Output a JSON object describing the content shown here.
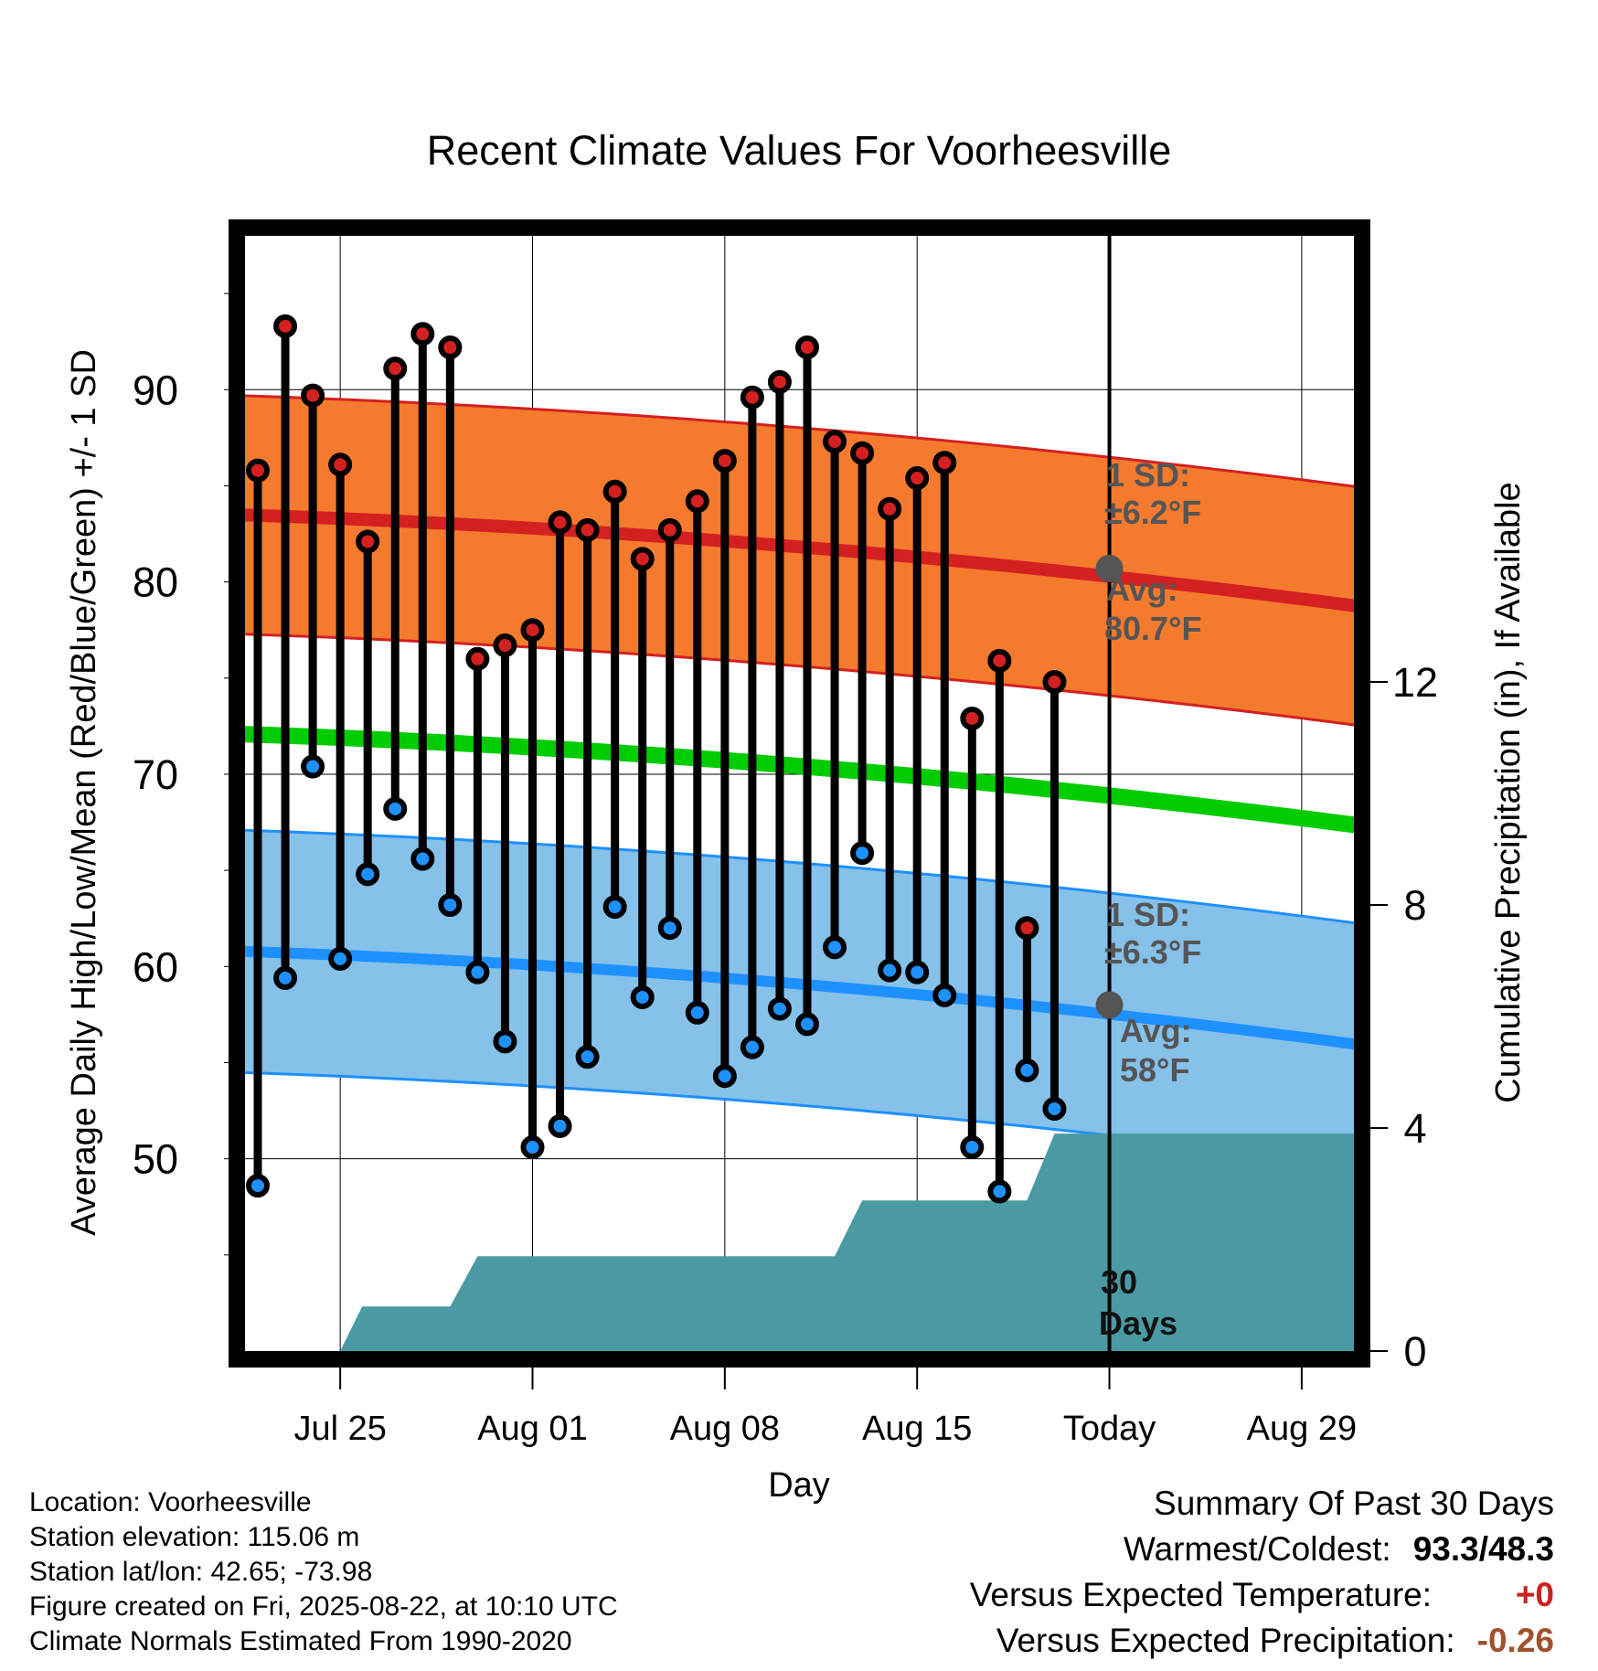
{
  "chart_data": {
    "type": "line",
    "title": "Recent Climate Values For Voorheesville",
    "xlabel": "Day",
    "ylabel": "Average Daily High/Low/Mean (Red/Blue/Green) +/- 1 SD",
    "y2label": "Cumulative Precipitation (in), If Available",
    "x_start": "Jul 22",
    "x_end": "Aug 31",
    "today_index": 31,
    "x_ticks": [
      {
        "label": "Jul 25",
        "day_index": 3
      },
      {
        "label": "Aug 01",
        "day_index": 10
      },
      {
        "label": "Aug 08",
        "day_index": 17
      },
      {
        "label": "Aug 15",
        "day_index": 24
      },
      {
        "label": "Today",
        "day_index": 31
      },
      {
        "label": "Aug 29",
        "day_index": 38
      }
    ],
    "ylim": [
      40,
      98
    ],
    "y_ticks": [
      50,
      60,
      70,
      80,
      90
    ],
    "y2lim": [
      0,
      20
    ],
    "y2_ticks": [
      0,
      4,
      8,
      12
    ],
    "grid": true,
    "series": [
      {
        "name": "High",
        "color": "#d42020",
        "values": [
          85.8,
          93.3,
          89.7,
          86.1,
          82.1,
          91.1,
          92.9,
          92.2,
          76.0,
          76.7,
          77.5,
          83.1,
          82.7,
          84.7,
          81.2,
          82.7,
          84.2,
          86.3,
          89.6,
          90.4,
          92.2,
          87.3,
          86.7,
          83.8,
          85.4,
          86.2,
          72.9,
          75.9,
          62.0,
          74.8
        ]
      },
      {
        "name": "Low",
        "color": "#1e90ff",
        "values": [
          48.6,
          59.4,
          70.4,
          60.4,
          64.8,
          68.2,
          65.6,
          63.2,
          59.7,
          56.1,
          50.6,
          51.7,
          55.3,
          63.1,
          58.4,
          62.0,
          57.6,
          54.3,
          55.8,
          57.8,
          57.0,
          61.0,
          65.9,
          59.8,
          59.7,
          58.5,
          50.6,
          48.3,
          54.6,
          52.6
        ]
      }
    ],
    "normals": {
      "high_avg": [
        83.5,
        78.7
      ],
      "high_sd": 6.2,
      "low_avg": [
        60.8,
        55.9
      ],
      "low_sd": 6.3,
      "mean_avg": [
        72.1,
        67.3
      ]
    },
    "precip_cumulative": {
      "color": "#4a9aa4",
      "steps": [
        {
          "day_index": 3.0,
          "value": 0.0
        },
        {
          "day_index": 3.8,
          "value": 0.8
        },
        {
          "day_index": 7.0,
          "value": 0.8
        },
        {
          "day_index": 8.0,
          "value": 1.7
        },
        {
          "day_index": 21.0,
          "value": 1.7
        },
        {
          "day_index": 22.0,
          "value": 2.7
        },
        {
          "day_index": 28.0,
          "value": 2.7
        },
        {
          "day_index": 29.0,
          "value": 3.9
        },
        {
          "day_index": 40.0,
          "value": 3.9
        }
      ]
    },
    "annotations": {
      "high_sd_label": "1 SD:",
      "high_sd_value": "±6.2°F",
      "high_avg_label": "Avg:",
      "high_avg_value": "80.7°F",
      "high_avg_point": 80.7,
      "low_sd_label": "1 SD:",
      "low_sd_value": "±6.3°F",
      "low_avg_label": "Avg:",
      "low_avg_value": "58°F",
      "low_avg_point": 58.0,
      "days_number": "30",
      "days_label": "Days"
    }
  },
  "footer": {
    "location": "Location: Voorheesville",
    "elevation": "Station elevation: 115.06 m",
    "latlon": "Station lat/lon: 42.65; -73.98",
    "created": "Figure created on Fri, 2025-08-22, at 10:10 UTC",
    "normals": "Climate Normals Estimated From 1990-2020"
  },
  "summary": {
    "title": "Summary Of Past 30 Days",
    "warm_cold_label": "Warmest/Coldest:",
    "warm_cold_value": "93.3/48.3",
    "temp_label": "Versus Expected Temperature:",
    "temp_value": "+0",
    "temp_color": "#cc2222",
    "precip_label": "Versus Expected Precipitation:",
    "precip_value": "-0.26",
    "precip_color": "#a0522d"
  }
}
